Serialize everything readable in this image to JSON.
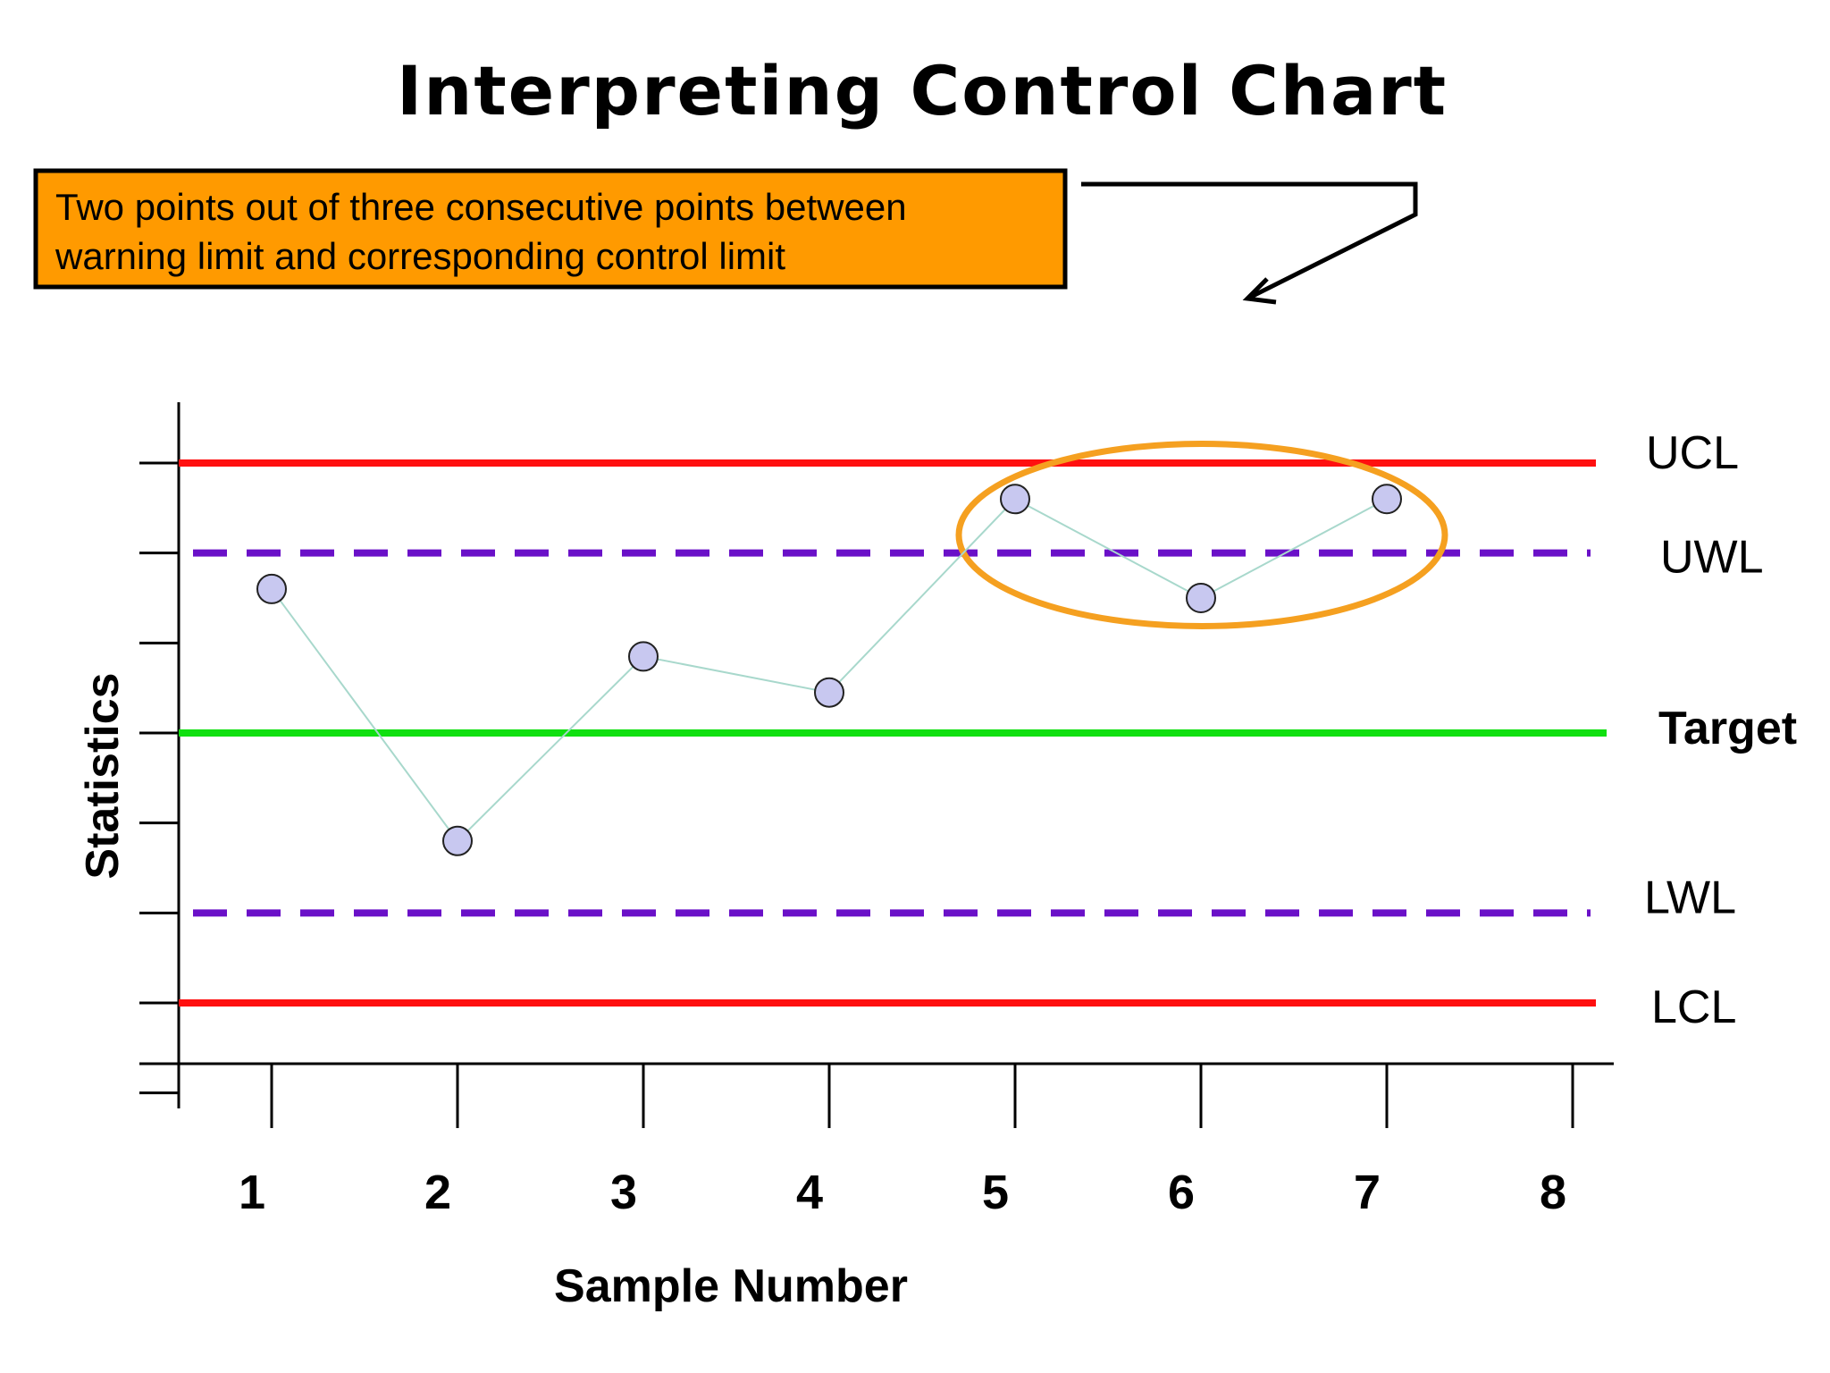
{
  "chart_data": {
    "type": "line",
    "title": "Interpreting Control Chart",
    "xlabel": "Sample Number",
    "ylabel": "Statistics",
    "x_ticks": [
      1,
      2,
      3,
      4,
      5,
      6,
      7,
      8
    ],
    "xlim": [
      0.5,
      8.5
    ],
    "ylim": [
      -4,
      4
    ],
    "grid": false,
    "series": [
      {
        "x": [
          1,
          2,
          3,
          4,
          5,
          6,
          7
        ],
        "y": [
          1.6,
          -1.2,
          0.85,
          0.45,
          2.6,
          1.5,
          2.6
        ],
        "color": "#c8c8f0",
        "line_color": "#a8d8cc"
      }
    ],
    "limits": [
      {
        "label": "UCL",
        "value": 3,
        "color": "#ff1010",
        "style": "solid",
        "bold": false
      },
      {
        "label": "UWL",
        "value": 2,
        "color": "#6a10c8",
        "style": "dashed",
        "bold": false
      },
      {
        "label": "Target",
        "value": 0,
        "color": "#10e010",
        "style": "solid",
        "bold": true
      },
      {
        "label": "LWL",
        "value": -2,
        "color": "#6a10c8",
        "style": "dashed",
        "bold": false
      },
      {
        "label": "LCL",
        "value": -3,
        "color": "#ff1010",
        "style": "solid",
        "bold": false
      }
    ],
    "annotations": [
      {
        "text_lines": [
          "Two points out of three consecutive points between",
          "warning limit and corresponding control limit"
        ],
        "background": "#ff9a00",
        "highlight_color": "#f5a020"
      }
    ]
  }
}
